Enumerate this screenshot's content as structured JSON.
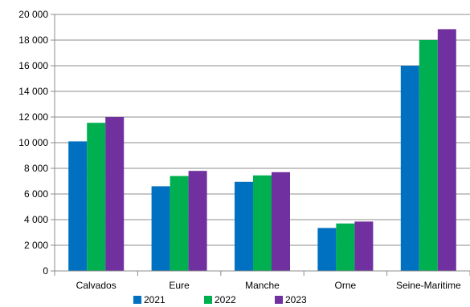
{
  "chart_data": {
    "type": "bar",
    "categories": [
      "Calvados",
      "Eure",
      "Manche",
      "Orne",
      "Seine-Maritime"
    ],
    "series": [
      {
        "name": "2021",
        "color": "#0070C0",
        "values": [
          10100,
          6600,
          6950,
          3350,
          16000
        ]
      },
      {
        "name": "2022",
        "color": "#00B050",
        "values": [
          11550,
          7400,
          7450,
          3700,
          18000
        ]
      },
      {
        "name": "2023",
        "color": "#7030A0",
        "values": [
          12000,
          7800,
          7700,
          3850,
          18850
        ]
      }
    ],
    "ylim": [
      0,
      20000
    ],
    "yticks": [
      0,
      2000,
      4000,
      6000,
      8000,
      10000,
      12000,
      14000,
      16000,
      18000,
      20000
    ],
    "ytick_labels": [
      "0",
      "2 000",
      "4 000",
      "6 000",
      "8 000",
      "10 000",
      "12 000",
      "14 000",
      "16 000",
      "18 000",
      "20 000"
    ],
    "grid": true,
    "legend_position": "bottom",
    "title": "",
    "xlabel": "",
    "ylabel": ""
  }
}
